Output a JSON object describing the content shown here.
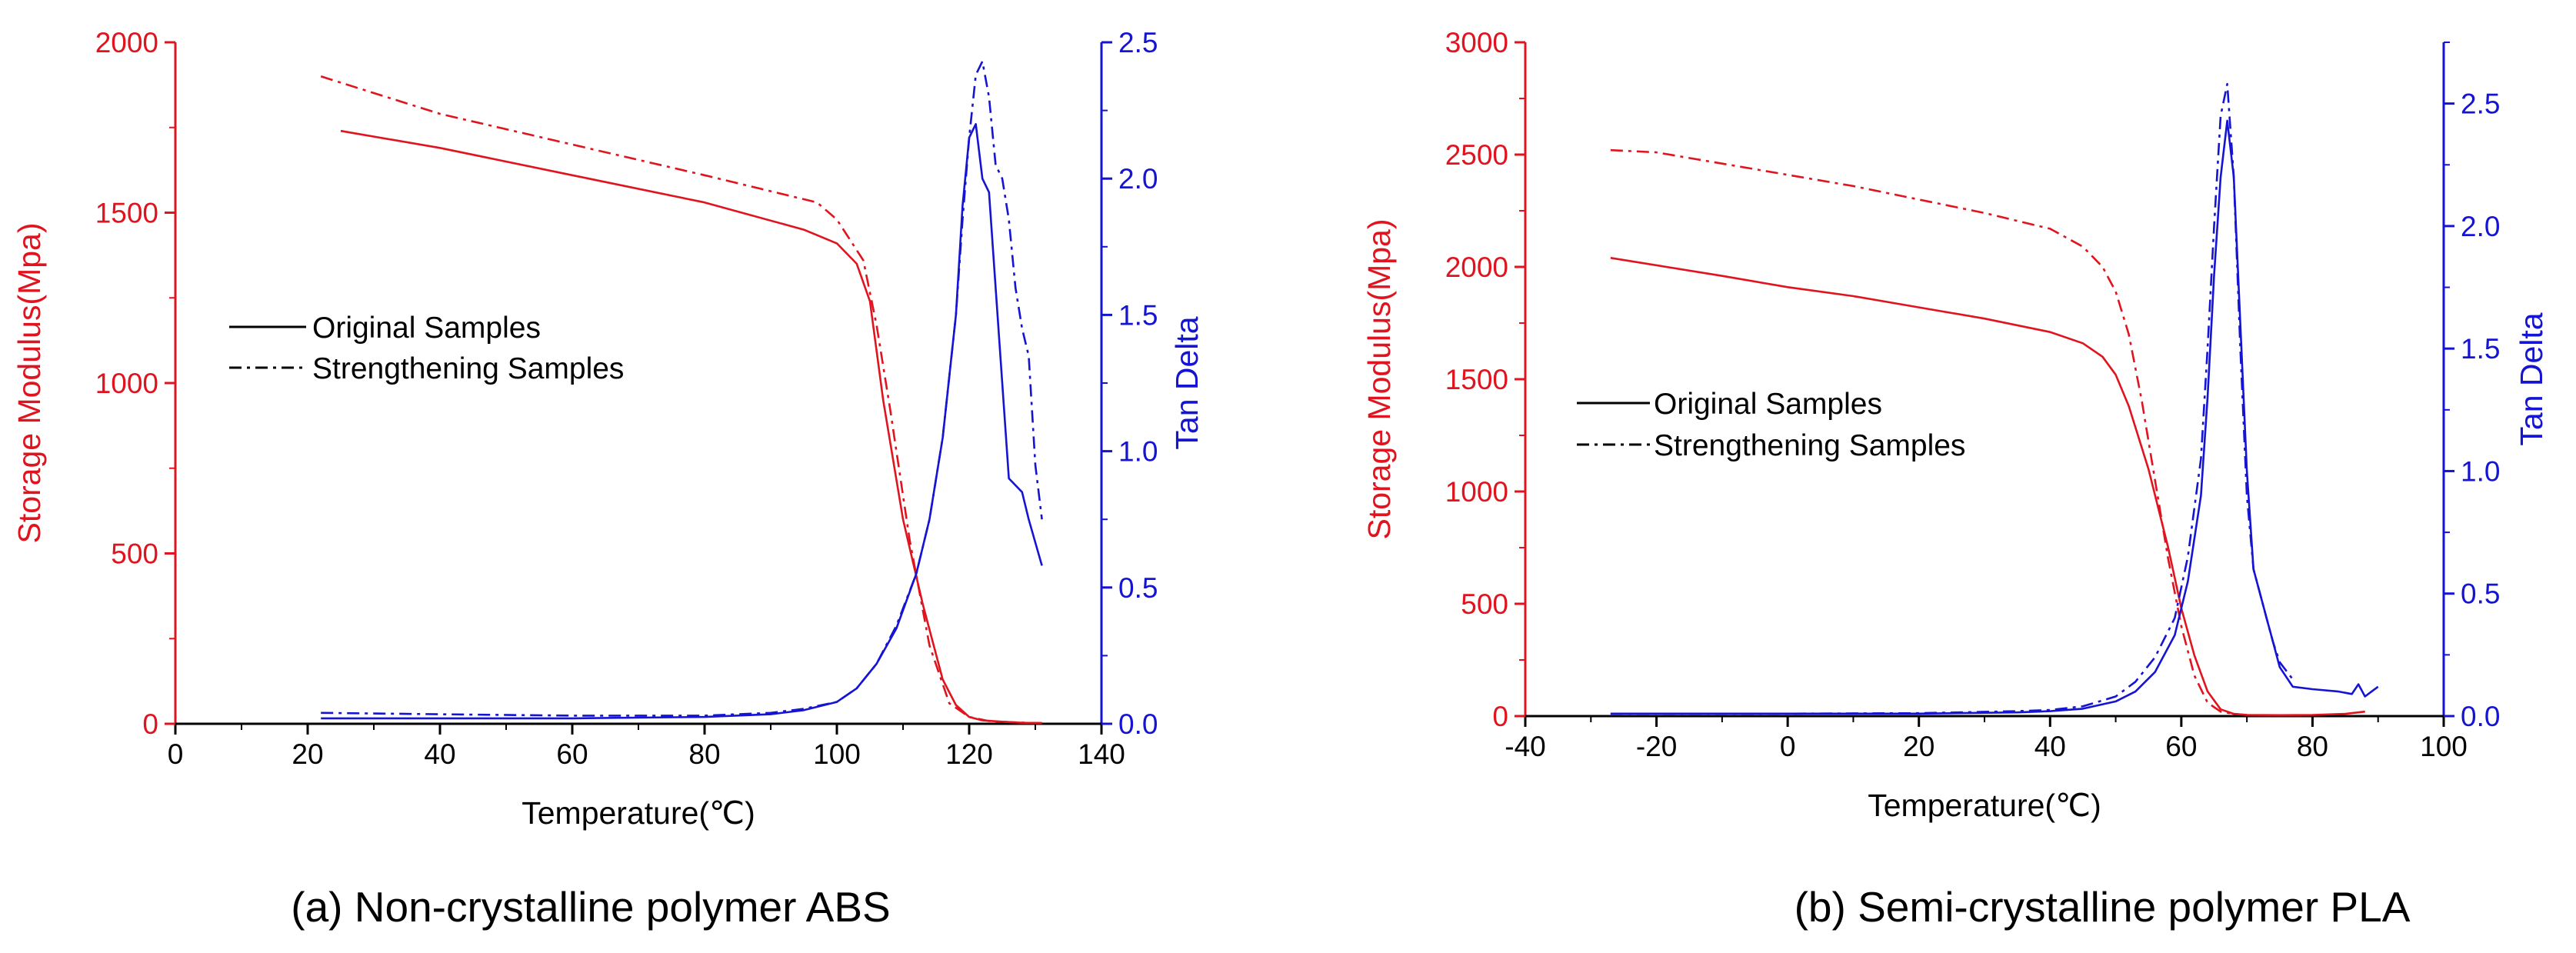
{
  "figure": {
    "captions": [
      "(a) Non-crystalline polymer ABS",
      "(b) Semi-crystalline polymer PLA"
    ]
  },
  "colors": {
    "storage": "#e0141e",
    "tan": "#1414d2",
    "axis": "#000000"
  },
  "chart_data": [
    {
      "type": "line",
      "caption": "(a) Non-crystalline polymer ABS",
      "xlabel": "Temperature(℃)",
      "ylabel_left": "Storage Modulus(Mpa)",
      "ylabel_right": "Tan Delta",
      "xlim": [
        0,
        140
      ],
      "ylim_left": [
        0,
        2000
      ],
      "ylim_right": [
        0,
        2.5
      ],
      "xticks": [
        0,
        20,
        40,
        60,
        80,
        100,
        120,
        140
      ],
      "yticks_left": [
        0,
        500,
        1000,
        1500,
        2000
      ],
      "yticks_right": [
        0.0,
        0.5,
        1.0,
        1.5,
        2.0,
        2.5
      ],
      "legend": {
        "position": "center-left",
        "entries": [
          "Original Samples",
          "Strengthening Samples"
        ]
      },
      "series": [
        {
          "name": "Original Samples",
          "quantity": "storage",
          "axis": "left",
          "style": "solid",
          "x": [
            25,
            40,
            60,
            80,
            95,
            100,
            103,
            105,
            107,
            110,
            113,
            116,
            118,
            120,
            122,
            125,
            128,
            131
          ],
          "y": [
            1740,
            1690,
            1610,
            1530,
            1450,
            1410,
            1350,
            1240,
            950,
            600,
            350,
            130,
            55,
            20,
            10,
            6,
            3,
            2
          ]
        },
        {
          "name": "Strengthening Samples",
          "quantity": "storage",
          "axis": "left",
          "style": "dashdot",
          "x": [
            22,
            40,
            60,
            80,
            97,
            100,
            104,
            106,
            108,
            111,
            114,
            117,
            120,
            123,
            126,
            129,
            131
          ],
          "y": [
            1900,
            1790,
            1700,
            1610,
            1530,
            1480,
            1360,
            1170,
            930,
            540,
            230,
            60,
            20,
            8,
            5,
            3,
            2
          ]
        },
        {
          "name": "Original Samples",
          "quantity": "tan",
          "axis": "right",
          "style": "solid",
          "x": [
            22,
            40,
            60,
            80,
            90,
            95,
            100,
            103,
            106,
            109,
            112,
            114,
            116,
            118,
            119,
            120,
            121,
            122,
            123,
            124,
            126,
            128,
            129,
            131
          ],
          "y": [
            0.02,
            0.02,
            0.02,
            0.025,
            0.035,
            0.05,
            0.08,
            0.13,
            0.22,
            0.35,
            0.55,
            0.75,
            1.05,
            1.5,
            1.9,
            2.15,
            2.2,
            2.0,
            1.95,
            1.6,
            0.9,
            0.85,
            0.75,
            0.58
          ]
        },
        {
          "name": "Strengthening Samples",
          "quantity": "tan",
          "axis": "right",
          "style": "dashdot",
          "x": [
            22,
            40,
            60,
            80,
            90,
            95,
            100,
            103,
            106,
            109,
            112,
            114,
            116,
            118,
            119,
            120,
            121,
            122,
            123,
            124,
            125,
            126,
            127,
            128,
            129,
            130,
            131
          ],
          "y": [
            0.04,
            0.035,
            0.03,
            0.03,
            0.04,
            0.055,
            0.08,
            0.13,
            0.22,
            0.36,
            0.55,
            0.75,
            1.05,
            1.5,
            1.85,
            2.15,
            2.38,
            2.43,
            2.3,
            2.05,
            2.0,
            1.85,
            1.6,
            1.45,
            1.35,
            0.95,
            0.75
          ]
        }
      ]
    },
    {
      "type": "line",
      "caption": "(b) Semi-crystalline polymer PLA",
      "xlabel": "Temperature(℃)",
      "ylabel_left": "Storage Modulus(Mpa)",
      "ylabel_right": "Tan Delta",
      "xlim": [
        -40,
        100
      ],
      "ylim_left": [
        0,
        3000
      ],
      "ylim_right": [
        0,
        2.75
      ],
      "xticks": [
        -40,
        -20,
        0,
        20,
        40,
        60,
        80,
        100
      ],
      "yticks_left": [
        0,
        500,
        1000,
        1500,
        2000,
        2500,
        3000
      ],
      "yticks_right": [
        0.0,
        0.5,
        1.0,
        1.5,
        2.0,
        2.5
      ],
      "legend": {
        "position": "center-left",
        "entries": [
          "Original Samples",
          "Strengthening Samples"
        ]
      },
      "series": [
        {
          "name": "Original Samples",
          "quantity": "storage",
          "axis": "left",
          "style": "solid",
          "x": [
            -27,
            -10,
            0,
            10,
            20,
            30,
            40,
            45,
            48,
            50,
            52,
            55,
            58,
            60,
            62,
            64,
            66,
            68,
            70,
            75,
            80,
            85,
            88
          ],
          "y": [
            2040,
            1960,
            1910,
            1870,
            1820,
            1770,
            1710,
            1660,
            1600,
            1520,
            1380,
            1100,
            750,
            480,
            270,
            110,
            30,
            10,
            5,
            4,
            5,
            10,
            20
          ]
        },
        {
          "name": "Strengthening Samples",
          "quantity": "storage",
          "axis": "left",
          "style": "dashdot",
          "x": [
            -27,
            -20,
            -10,
            0,
            10,
            20,
            30,
            40,
            45,
            48,
            50,
            52,
            54,
            56,
            58,
            60,
            62,
            64,
            66,
            68,
            70
          ],
          "y": [
            2520,
            2510,
            2460,
            2410,
            2360,
            2300,
            2240,
            2170,
            2090,
            2000,
            1890,
            1700,
            1400,
            1050,
            700,
            400,
            180,
            60,
            20,
            10,
            5
          ]
        },
        {
          "name": "Original Samples",
          "quantity": "tan",
          "axis": "right",
          "style": "solid",
          "x": [
            -27,
            0,
            20,
            35,
            40,
            45,
            50,
            53,
            56,
            59,
            61,
            63,
            64,
            65,
            66,
            67,
            68,
            69,
            70,
            71,
            72,
            73,
            74,
            75,
            77,
            80,
            84,
            86,
            87,
            88,
            89,
            90
          ],
          "y": [
            0.01,
            0.01,
            0.01,
            0.015,
            0.02,
            0.03,
            0.06,
            0.1,
            0.18,
            0.33,
            0.55,
            0.9,
            1.3,
            1.8,
            2.2,
            2.43,
            2.2,
            1.6,
            1.0,
            0.6,
            0.5,
            0.4,
            0.3,
            0.2,
            0.12,
            0.11,
            0.1,
            0.09,
            0.13,
            0.08,
            0.1,
            0.12
          ]
        },
        {
          "name": "Strengthening Samples",
          "quantity": "tan",
          "axis": "right",
          "style": "dashdot",
          "x": [
            -27,
            0,
            20,
            35,
            40,
            45,
            50,
            53,
            56,
            59,
            61,
            63,
            64,
            65,
            66,
            67,
            68,
            69,
            70,
            71,
            72,
            73,
            74,
            75,
            77
          ],
          "y": [
            0.01,
            0.01,
            0.012,
            0.02,
            0.025,
            0.04,
            0.08,
            0.14,
            0.24,
            0.4,
            0.65,
            1.05,
            1.5,
            2.0,
            2.45,
            2.58,
            2.2,
            1.5,
            0.9,
            0.6,
            0.5,
            0.4,
            0.3,
            0.22,
            0.15
          ]
        }
      ]
    }
  ]
}
